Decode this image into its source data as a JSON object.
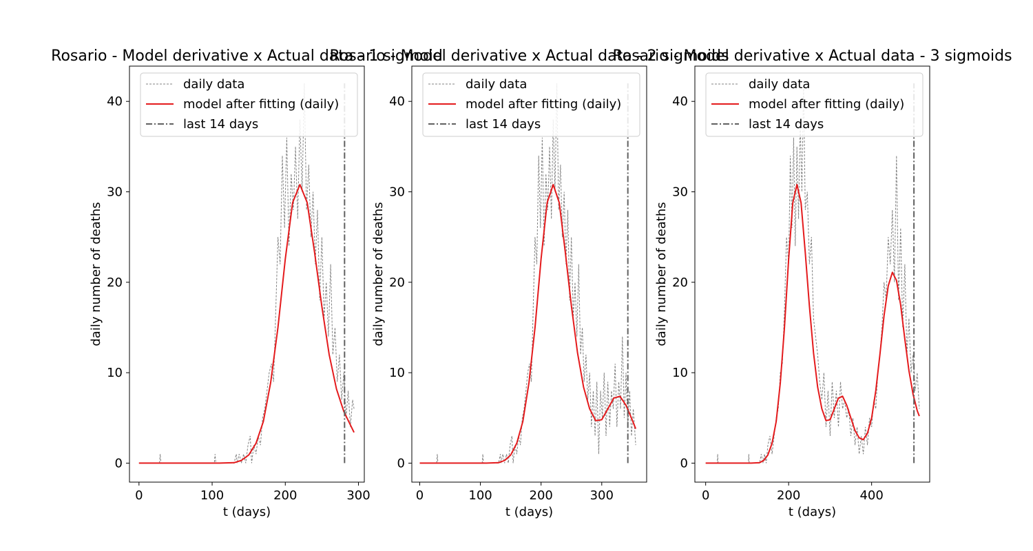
{
  "colors": {
    "daily_data": "#808080",
    "model": "#e41a1c",
    "last_14_days": "#606060",
    "axes": "#000000",
    "background": "#ffffff"
  },
  "legend": {
    "placement": "upper center",
    "entries": [
      "daily data",
      "model after fitting (daily)",
      "last 14 days"
    ]
  },
  "chart_data": [
    {
      "type": "line",
      "title": "Rosario - Model derivative x Actual data - 1 sigmoid",
      "xlabel": "t (days)",
      "ylabel": "daily number of deaths",
      "xlim": [
        -13,
        308
      ],
      "ylim": [
        -2.1,
        43.9
      ],
      "xticks": [
        0,
        100,
        200,
        300
      ],
      "yticks": [
        0,
        10,
        20,
        30,
        40
      ],
      "grid": false,
      "n_days": 294,
      "last_14_days_x": 281,
      "last_14_days_y": [
        0,
        42
      ],
      "series": [
        {
          "name": "daily data",
          "style": "dashed",
          "x": [
            0,
            28,
            29,
            30,
            100,
            103,
            104,
            105,
            130,
            133,
            134,
            137,
            140,
            143,
            146,
            149,
            152,
            154,
            157,
            160,
            163,
            166,
            169,
            172,
            175,
            178,
            181,
            184,
            187,
            190,
            193,
            196,
            199,
            202,
            205,
            208,
            211,
            214,
            217,
            220,
            223,
            226,
            229,
            232,
            235,
            238,
            241,
            244,
            247,
            250,
            253,
            256,
            259,
            262,
            265,
            268,
            271,
            274,
            277,
            280,
            283,
            286,
            289,
            292,
            294
          ],
          "y": [
            0,
            0,
            1,
            0,
            0,
            0,
            1,
            0,
            0,
            1,
            0,
            1,
            0,
            1,
            0,
            2,
            3,
            0,
            2,
            1,
            3,
            2,
            5,
            6,
            8,
            10,
            11,
            9,
            17,
            25,
            22,
            34,
            26,
            36,
            24,
            32,
            28,
            35,
            27,
            38,
            30,
            42,
            28,
            33,
            25,
            30,
            22,
            28,
            18,
            25,
            16,
            20,
            14,
            22,
            12,
            15,
            9,
            12,
            7,
            10,
            5,
            8,
            4,
            7,
            6
          ]
        },
        {
          "name": "model after fitting (daily)",
          "style": "solid",
          "x": [
            0,
            40,
            80,
            110,
            130,
            140,
            150,
            160,
            170,
            180,
            190,
            200,
            210,
            220,
            230,
            240,
            250,
            260,
            270,
            280,
            294
          ],
          "y": [
            0,
            0,
            0,
            0,
            0.05,
            0.3,
            0.9,
            2.2,
            4.6,
            8.9,
            15.0,
            22.6,
            28.8,
            30.8,
            28.8,
            23.3,
            17.3,
            12.0,
            8.2,
            5.7,
            3.4
          ]
        }
      ]
    },
    {
      "type": "line",
      "title": "Rosario - Model derivative x Actual data - 2 sigmoids",
      "xlabel": "t (days)",
      "ylabel": "daily number of deaths",
      "xlim": [
        -13,
        374
      ],
      "ylim": [
        -2.1,
        43.9
      ],
      "xticks": [
        0,
        100,
        200,
        300
      ],
      "yticks": [
        0,
        10,
        20,
        30,
        40
      ],
      "grid": false,
      "n_days": 356,
      "last_14_days_x": 343,
      "last_14_days_y": [
        0,
        42
      ],
      "series": [
        {
          "name": "daily data",
          "style": "dashed",
          "x": [
            0,
            28,
            29,
            30,
            100,
            103,
            104,
            105,
            130,
            133,
            134,
            137,
            140,
            143,
            146,
            149,
            152,
            154,
            157,
            160,
            163,
            166,
            169,
            172,
            175,
            178,
            181,
            184,
            187,
            190,
            193,
            196,
            199,
            202,
            205,
            208,
            211,
            214,
            217,
            220,
            223,
            226,
            229,
            232,
            235,
            238,
            241,
            244,
            247,
            250,
            253,
            256,
            259,
            262,
            265,
            268,
            271,
            274,
            277,
            280,
            283,
            286,
            289,
            292,
            295,
            298,
            301,
            304,
            307,
            310,
            313,
            316,
            319,
            322,
            325,
            328,
            331,
            334,
            337,
            340,
            343,
            346,
            349,
            352,
            356
          ],
          "y": [
            0,
            0,
            1,
            0,
            0,
            0,
            1,
            0,
            0,
            1,
            0,
            1,
            0,
            1,
            0,
            2,
            3,
            0,
            2,
            1,
            3,
            2,
            5,
            6,
            8,
            10,
            11,
            9,
            17,
            25,
            22,
            34,
            26,
            36,
            24,
            32,
            28,
            35,
            27,
            38,
            30,
            42,
            28,
            33,
            25,
            30,
            22,
            28,
            18,
            25,
            16,
            20,
            14,
            22,
            12,
            15,
            9,
            12,
            7,
            10,
            4,
            8,
            3,
            9,
            1,
            8,
            5,
            10,
            3,
            9,
            4,
            8,
            6,
            11,
            4,
            9,
            6,
            14,
            5,
            10,
            4,
            8,
            3,
            6,
            2
          ]
        },
        {
          "name": "model after fitting (daily)",
          "style": "solid",
          "x": [
            0,
            40,
            80,
            110,
            130,
            140,
            150,
            160,
            170,
            180,
            190,
            200,
            210,
            220,
            230,
            240,
            250,
            260,
            270,
            280,
            290,
            300,
            310,
            320,
            330,
            340,
            350,
            356
          ],
          "y": [
            0,
            0,
            0,
            0,
            0.05,
            0.3,
            0.9,
            2.2,
            4.6,
            8.9,
            15.0,
            22.6,
            28.8,
            30.8,
            28.8,
            23.3,
            17.4,
            12.2,
            8.4,
            6.0,
            4.7,
            4.8,
            6.0,
            7.2,
            7.4,
            6.4,
            4.8,
            3.8
          ]
        }
      ]
    },
    {
      "type": "line",
      "title": "Rosario - Model derivative x Actual data - 3 sigmoids",
      "xlabel": "t (days)",
      "ylabel": "daily number of deaths",
      "xlim": [
        -26,
        540
      ],
      "ylim": [
        -2.1,
        43.9
      ],
      "xticks": [
        0,
        200,
        400
      ],
      "yticks": [
        0,
        10,
        20,
        30,
        40
      ],
      "grid": false,
      "n_days": 515,
      "last_14_days_x": 502,
      "last_14_days_y": [
        0,
        42
      ],
      "series": [
        {
          "name": "daily data",
          "style": "dashed",
          "x": [
            0,
            28,
            29,
            30,
            100,
            103,
            104,
            105,
            130,
            134,
            138,
            142,
            146,
            150,
            155,
            160,
            165,
            170,
            175,
            180,
            185,
            190,
            195,
            200,
            204,
            208,
            212,
            216,
            220,
            224,
            228,
            232,
            236,
            240,
            245,
            250,
            255,
            260,
            265,
            270,
            275,
            280,
            285,
            290,
            295,
            300,
            305,
            310,
            315,
            320,
            325,
            330,
            335,
            340,
            345,
            350,
            355,
            360,
            365,
            370,
            375,
            380,
            385,
            390,
            395,
            400,
            405,
            410,
            415,
            420,
            425,
            430,
            435,
            440,
            445,
            450,
            455,
            460,
            465,
            470,
            475,
            480,
            485,
            490,
            495,
            500,
            505,
            510,
            515
          ],
          "y": [
            0,
            0,
            1,
            0,
            0,
            0,
            1,
            0,
            0,
            1,
            0,
            1,
            0,
            2,
            3,
            1,
            3,
            5,
            6,
            10,
            11,
            17,
            25,
            22,
            34,
            26,
            36,
            24,
            35,
            27,
            38,
            30,
            42,
            28,
            30,
            22,
            25,
            16,
            14,
            12,
            9,
            7,
            10,
            4,
            8,
            3,
            9,
            5,
            8,
            4,
            9,
            6,
            7,
            5,
            6,
            3,
            5,
            2,
            4,
            1,
            3,
            1,
            4,
            2,
            5,
            4,
            7,
            6,
            10,
            12,
            15,
            20,
            18,
            25,
            22,
            28,
            20,
            34,
            18,
            26,
            15,
            22,
            12,
            16,
            10,
            12,
            8,
            10,
            6
          ]
        },
        {
          "name": "model after fitting (daily)",
          "style": "solid",
          "x": [
            0,
            40,
            80,
            110,
            130,
            140,
            150,
            160,
            170,
            180,
            190,
            200,
            210,
            220,
            230,
            240,
            250,
            260,
            270,
            280,
            290,
            300,
            310,
            320,
            330,
            340,
            350,
            360,
            370,
            380,
            390,
            400,
            410,
            420,
            430,
            440,
            450,
            460,
            470,
            480,
            490,
            500,
            510,
            515
          ],
          "y": [
            0,
            0,
            0,
            0,
            0.05,
            0.3,
            0.9,
            2.2,
            4.6,
            8.9,
            15.0,
            22.6,
            28.8,
            30.8,
            28.8,
            23.3,
            17.4,
            12.2,
            8.4,
            6.0,
            4.7,
            4.8,
            6.0,
            7.2,
            7.4,
            6.4,
            5.0,
            3.6,
            2.8,
            2.6,
            3.3,
            5.0,
            8.0,
            12.0,
            16.3,
            19.6,
            21.1,
            20.2,
            17.5,
            13.7,
            10.2,
            7.6,
            5.8,
            5.2
          ]
        }
      ]
    }
  ]
}
